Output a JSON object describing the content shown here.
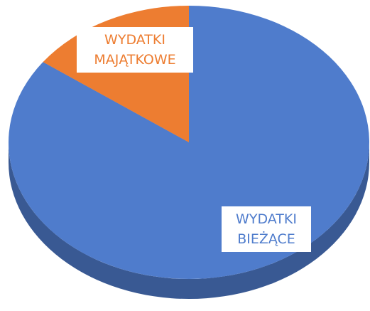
{
  "chart_data": {
    "type": "pie",
    "categories": [
      "WYDATKI BIEŻĄCE",
      "WYDATKI MAJĄTKOWE"
    ],
    "values": [
      85,
      15
    ],
    "colors": [
      "#4f7ccc",
      "#ed7d31"
    ]
  }
}
